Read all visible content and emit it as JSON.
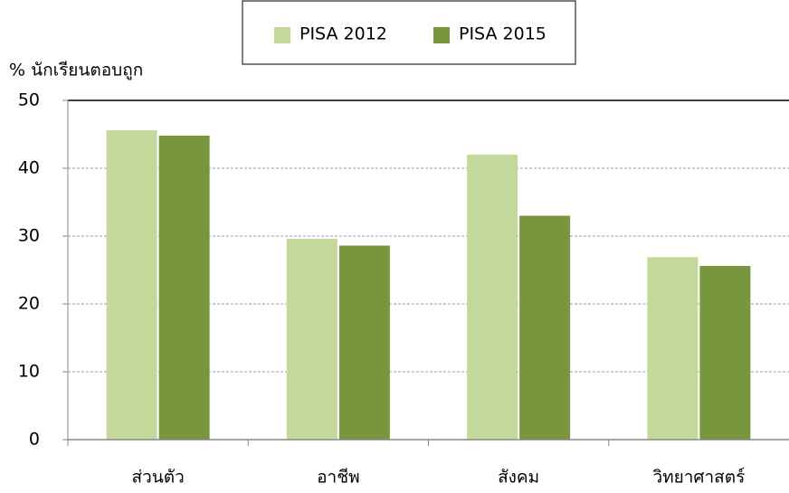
{
  "chart_data": {
    "type": "bar",
    "y_label": "% นักเรียนตอบถูก",
    "categories": [
      "ส่วนตัว",
      "อาชีพ",
      "สังคม",
      "วิทยาศาสตร์"
    ],
    "series": [
      {
        "name": "PISA 2012",
        "color": "#c5d89b",
        "values": [
          45.6,
          29.6,
          42,
          26.9
        ]
      },
      {
        "name": "PISA 2015",
        "color": "#77963d",
        "values": [
          44.8,
          28.6,
          33,
          25.6
        ]
      }
    ],
    "ylim": [
      0,
      50
    ],
    "yticks": [
      0,
      10,
      20,
      30,
      40,
      50
    ],
    "grid": true,
    "legend": "top"
  }
}
